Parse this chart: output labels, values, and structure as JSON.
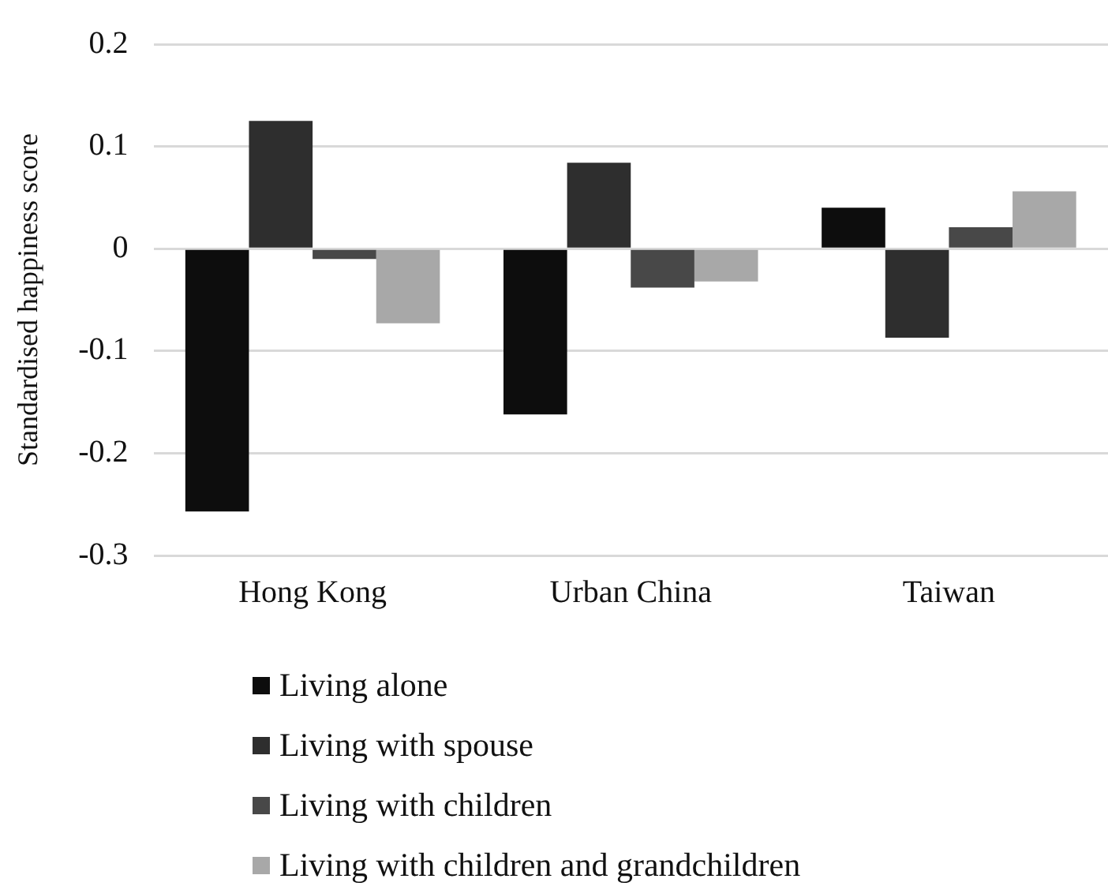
{
  "chart_data": {
    "type": "bar",
    "ylabel": "Standardised happiness score",
    "categories": [
      "Hong Kong",
      "Urban China",
      "Taiwan"
    ],
    "series": [
      {
        "name": "Living alone",
        "color": "#0d0d0d",
        "values": [
          -0.257,
          -0.162,
          0.04
        ]
      },
      {
        "name": "Living with spouse",
        "color": "#2e2e2e",
        "values": [
          0.125,
          0.084,
          -0.087
        ]
      },
      {
        "name": "Living with children",
        "color": "#484848",
        "values": [
          -0.01,
          -0.038,
          0.021
        ]
      },
      {
        "name": "Living with children and grandchildren",
        "color": "#a8a8a8",
        "values": [
          -0.073,
          -0.032,
          0.056
        ]
      }
    ],
    "ylim": [
      -0.3,
      0.2
    ],
    "yticks": [
      -0.3,
      -0.2,
      -0.1,
      0,
      0.1,
      0.2
    ],
    "grid": "y",
    "legend": "bottom"
  }
}
